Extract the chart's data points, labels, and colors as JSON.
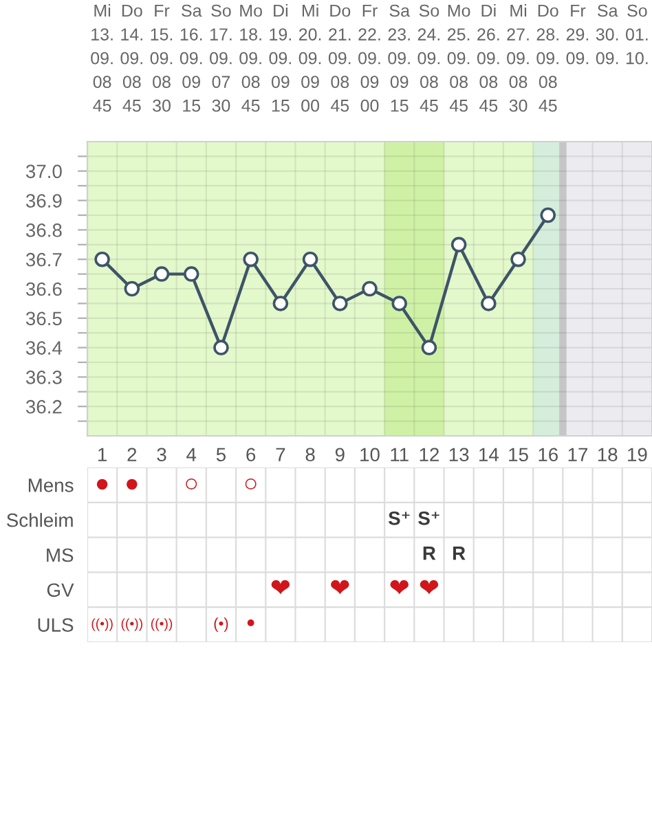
{
  "chart_data": [
    {
      "type": "line",
      "categories": [
        "Mi\n13.\n09.\n08\n45",
        "Do\n14.\n09.\n08\n45",
        "Fr\n15.\n09.\n08\n30",
        "Sa\n16.\n09.\n09\n15",
        "So\n17.\n09.\n07\n30",
        "Mo\n18.\n09.\n08\n45",
        "Di\n19.\n09.\n09\n15",
        "Mi\n20.\n09.\n09\n00",
        "Do\n21.\n09.\n08\n45",
        "Fr\n22.\n09.\n09\n00",
        "Sa\n23.\n09.\n09\n15",
        "So\n24.\n09.\n08\n45",
        "Mo\n25.\n09.\n08\n45",
        "Di\n26.\n09.\n08\n45",
        "Mi\n27.\n09.\n08\n30",
        "Do\n28.\n09.\n08\n45",
        "Fr\n29.\n09.",
        "Sa\n30.\n09.",
        "So\n01.\n10."
      ],
      "values": [
        36.7,
        36.6,
        36.65,
        36.65,
        36.4,
        36.7,
        36.55,
        36.7,
        36.55,
        36.6,
        36.55,
        36.4,
        36.75,
        36.55,
        36.7,
        36.85,
        null,
        null,
        null
      ],
      "color": "#3e5468",
      "marker": "circle",
      "line_style": "solid",
      "grid": true,
      "ylim": [
        36.1,
        37.1
      ],
      "x2lim": [
        0.5,
        19.5
      ],
      "x2ticks": [
        {
          "value": 0.5,
          "label": null
        },
        1,
        {
          "value": 1.5,
          "label": null
        },
        2,
        {
          "value": 2.5,
          "label": null
        },
        3,
        {
          "value": 3.5,
          "label": null
        },
        4,
        {
          "value": 4.5,
          "label": null
        },
        5,
        {
          "value": 5.5,
          "label": null
        },
        6,
        {
          "value": 6.5,
          "label": null
        },
        7,
        {
          "value": 7.5,
          "label": null
        },
        8,
        {
          "value": 8.5,
          "label": null
        },
        9,
        {
          "value": 9.5,
          "label": null
        },
        10,
        {
          "value": 10.5,
          "label": null
        },
        11,
        {
          "value": 11.5,
          "label": null
        },
        12,
        {
          "value": 12.5,
          "label": null
        },
        13,
        {
          "value": 13.5,
          "label": null
        },
        14,
        {
          "value": 14.5,
          "label": null
        },
        15,
        {
          "value": 15.5,
          "label": null
        },
        16,
        {
          "value": 16.5,
          "label": null
        },
        17,
        {
          "value": 17.5,
          "label": null
        },
        18,
        {
          "value": 18.5,
          "label": null
        },
        19,
        {
          "value": 19.5,
          "label": null
        }
      ],
      "yticks": [
        {
          "value": 36.15,
          "label": null
        },
        36.2,
        {
          "value": 36.25,
          "label": null
        },
        36.3,
        {
          "value": 36.35,
          "label": null
        },
        36.4,
        {
          "value": 36.45,
          "label": null
        },
        36.5,
        {
          "value": 36.55,
          "label": null
        },
        36.6,
        {
          "value": 36.65,
          "label": null
        },
        36.7,
        {
          "value": 36.75,
          "label": null
        },
        36.8,
        {
          "value": 36.85,
          "label": null
        },
        36.9,
        {
          "value": 36.95,
          "label": null
        },
        {
          "value": 37,
          "label": "37.0"
        },
        {
          "value": 37.05,
          "label": null
        }
      ],
      "bands": [
        {
          "axis": "x2",
          "from": 0.5,
          "to": 15.5,
          "color": "#e3f8cb"
        },
        {
          "axis": "x2",
          "from": 10.5,
          "to": 12.5,
          "color": "#cff1a6"
        },
        {
          "axis": "x2",
          "from": 15.5,
          "to": 16.5,
          "color": "#d5eedc"
        },
        {
          "axis": "x2",
          "from": 16.5,
          "to": 19.5,
          "color": "#ececf0"
        }
      ],
      "ref_lines": [
        {
          "axis": "x2",
          "value": 16.5,
          "color": "#c6c6c8"
        }
      ]
    },
    {
      "type": "heatmap",
      "categories": [
        null,
        null,
        null,
        null,
        null,
        null,
        null,
        null,
        null,
        null,
        null,
        null,
        null,
        null,
        null,
        null,
        null,
        null,
        null
      ],
      "y_categories": [
        "Mens",
        "Schleim",
        "MS",
        "GV",
        "ULS"
      ],
      "tick_labels": "y",
      "grid": true,
      "cells": [
        [
          null,
          null,
          null,
          null,
          null,
          null,
          null,
          null,
          null,
          null,
          null,
          null,
          null,
          null,
          null,
          null,
          null,
          null,
          null
        ],
        [
          null,
          null,
          null,
          null,
          null,
          null,
          null,
          null,
          null,
          null,
          null,
          null,
          null,
          null,
          null,
          null,
          null,
          null,
          null
        ],
        [
          null,
          null,
          null,
          null,
          null,
          null,
          null,
          null,
          null,
          null,
          null,
          null,
          null,
          null,
          null,
          null,
          null,
          null,
          null
        ],
        [
          null,
          null,
          null,
          null,
          null,
          null,
          null,
          null,
          null,
          null,
          null,
          null,
          null,
          null,
          null,
          null,
          null,
          null,
          null
        ],
        [
          null,
          null,
          null,
          null,
          null,
          null,
          null,
          null,
          null,
          null,
          null,
          null,
          null,
          null,
          null,
          null,
          null,
          null,
          null
        ]
      ],
      "cell_labels": [
        [
          "●",
          "●",
          null,
          "○",
          null,
          "○",
          null,
          null,
          null,
          null,
          null,
          null,
          null,
          null,
          null,
          null,
          null,
          null,
          null
        ],
        [
          null,
          null,
          null,
          null,
          null,
          null,
          null,
          null,
          null,
          null,
          "S⁺",
          "S⁺",
          null,
          null,
          null,
          null,
          null,
          null,
          null
        ],
        [
          null,
          null,
          null,
          null,
          null,
          null,
          null,
          null,
          null,
          null,
          null,
          "R",
          "R",
          null,
          null,
          null,
          null,
          null,
          null
        ],
        [
          null,
          null,
          null,
          null,
          null,
          null,
          "❤",
          null,
          "❤",
          null,
          "❤",
          "❤",
          null,
          null,
          null,
          null,
          null,
          null,
          null
        ],
        [
          "((•))",
          "((•))",
          "((•))",
          null,
          "(•)",
          "•",
          null,
          null,
          null,
          null,
          null,
          null,
          null,
          null,
          null,
          null,
          null,
          null,
          null
        ]
      ]
    }
  ]
}
